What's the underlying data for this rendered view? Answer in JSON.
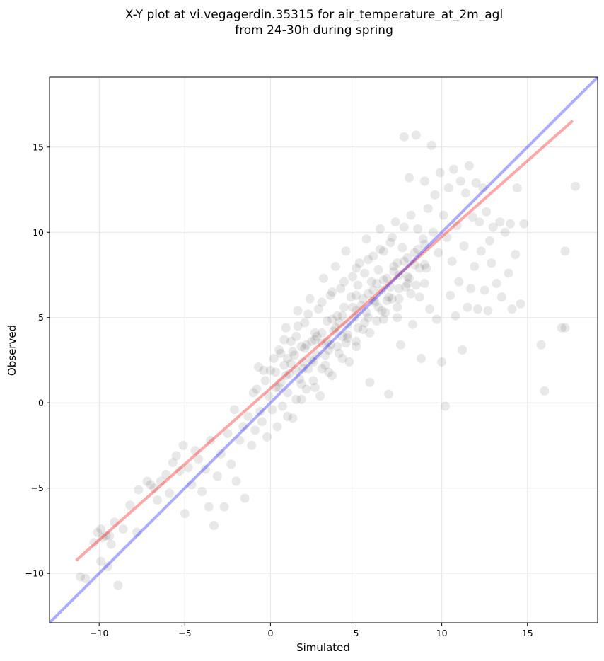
{
  "chart_data": {
    "type": "scatter",
    "title_lines": [
      "X-Y plot at vi.vegagerdin.35315 for air_temperature_at_2m_agl",
      "from 24-30h during spring"
    ],
    "xlabel": "Simulated",
    "ylabel": "Observed",
    "xlim": [
      -12.9,
      19.1
    ],
    "ylim": [
      -12.9,
      19.1
    ],
    "xticks": [
      -10,
      -5,
      0,
      5,
      10,
      15
    ],
    "yticks": [
      -10,
      -5,
      0,
      5,
      10,
      15
    ],
    "xtick_labels": [
      "−10",
      "−5",
      "0",
      "5",
      "10",
      "15"
    ],
    "ytick_labels": [
      "−10",
      "−5",
      "0",
      "5",
      "10",
      "15"
    ],
    "grid": true,
    "series": [
      {
        "kind": "points",
        "color": "#000000",
        "opacity": 0.09,
        "points": [
          [
            -11.1,
            -10.2
          ],
          [
            -10.8,
            -10.3
          ],
          [
            -10.3,
            -8.2
          ],
          [
            -10.1,
            -7.6
          ],
          [
            -9.9,
            -7.4
          ],
          [
            -9.8,
            -7.9
          ],
          [
            -9.6,
            -7.8
          ],
          [
            -9.4,
            -7.8
          ],
          [
            -9.3,
            -8.3
          ],
          [
            -9.9,
            -9.3
          ],
          [
            -9.5,
            -9.6
          ],
          [
            -9.1,
            -7.0
          ],
          [
            -8.9,
            -10.7
          ],
          [
            -8.6,
            -7.4
          ],
          [
            -8.2,
            -6.0
          ],
          [
            -7.8,
            -7.6
          ],
          [
            -7.7,
            -5.1
          ],
          [
            -7.2,
            -4.6
          ],
          [
            -7.0,
            -4.8
          ],
          [
            -6.8,
            -5.0
          ],
          [
            -6.6,
            -5.7
          ],
          [
            -6.4,
            -4.6
          ],
          [
            -6.1,
            -4.2
          ],
          [
            -5.9,
            -5.3
          ],
          [
            -5.7,
            -3.5
          ],
          [
            -5.5,
            -3.1
          ],
          [
            -5.3,
            -4.0
          ],
          [
            -5.1,
            -2.5
          ],
          [
            -5.0,
            -6.5
          ],
          [
            -4.8,
            -3.8
          ],
          [
            -4.6,
            -4.8
          ],
          [
            -4.4,
            -2.8
          ],
          [
            -4.2,
            -3.3
          ],
          [
            -4.0,
            -5.2
          ],
          [
            -3.8,
            -3.9
          ],
          [
            -3.6,
            -6.1
          ],
          [
            -3.5,
            -2.2
          ],
          [
            -3.3,
            -7.2
          ],
          [
            -3.1,
            -4.3
          ],
          [
            -2.9,
            -3.0
          ],
          [
            -2.7,
            -6.1
          ],
          [
            -2.5,
            -1.8
          ],
          [
            -2.3,
            -3.6
          ],
          [
            -2.1,
            -0.4
          ],
          [
            -2.0,
            -4.6
          ],
          [
            -1.8,
            -2.2
          ],
          [
            -1.6,
            -1.4
          ],
          [
            -1.5,
            -5.6
          ],
          [
            -1.3,
            -0.8
          ],
          [
            -1.1,
            -2.5
          ],
          [
            -1.0,
            0.6
          ],
          [
            -0.9,
            -1.6
          ],
          [
            -0.7,
            2.1
          ],
          [
            -0.6,
            -0.5
          ],
          [
            -0.5,
            -1.1
          ],
          [
            -0.3,
            1.3
          ],
          [
            -0.2,
            -2.0
          ],
          [
            -0.1,
            0.4
          ],
          [
            0.0,
            1.9
          ],
          [
            0.1,
            -0.4
          ],
          [
            0.2,
            2.6
          ],
          [
            0.3,
            0.9
          ],
          [
            0.4,
            -1.4
          ],
          [
            0.5,
            3.1
          ],
          [
            0.6,
            1.2
          ],
          [
            0.7,
            -0.2
          ],
          [
            0.8,
            2.2
          ],
          [
            0.9,
            4.4
          ],
          [
            1.0,
            0.6
          ],
          [
            1.1,
            1.7
          ],
          [
            1.2,
            3.6
          ],
          [
            1.3,
            -0.9
          ],
          [
            1.4,
            2.8
          ],
          [
            1.5,
            0.2
          ],
          [
            1.6,
            5.4
          ],
          [
            1.7,
            1.4
          ],
          [
            1.8,
            3.3
          ],
          [
            1.9,
            2.4
          ],
          [
            2.0,
            4.7
          ],
          [
            2.1,
            0.8
          ],
          [
            2.2,
            2.0
          ],
          [
            2.3,
            6.1
          ],
          [
            2.4,
            3.6
          ],
          [
            2.5,
            1.3
          ],
          [
            2.6,
            4.1
          ],
          [
            2.7,
            2.8
          ],
          [
            2.8,
            5.5
          ],
          [
            2.9,
            0.4
          ],
          [
            3.0,
            3.5
          ],
          [
            3.1,
            7.3
          ],
          [
            3.2,
            2.2
          ],
          [
            3.3,
            4.8
          ],
          [
            3.4,
            3.1
          ],
          [
            3.5,
            6.3
          ],
          [
            3.6,
            1.6
          ],
          [
            3.7,
            4.2
          ],
          [
            3.8,
            8.0
          ],
          [
            3.9,
            5.1
          ],
          [
            4.0,
            2.9
          ],
          [
            4.1,
            6.7
          ],
          [
            4.2,
            3.9
          ],
          [
            4.3,
            5.6
          ],
          [
            4.4,
            8.9
          ],
          [
            4.5,
            4.6
          ],
          [
            4.6,
            2.4
          ],
          [
            4.7,
            6.2
          ],
          [
            4.8,
            7.4
          ],
          [
            4.9,
            5.0
          ],
          [
            5.0,
            3.6
          ],
          [
            5.1,
            6.9
          ],
          [
            5.2,
            8.2
          ],
          [
            5.3,
            5.7
          ],
          [
            5.4,
            4.3
          ],
          [
            5.5,
            7.6
          ],
          [
            5.6,
            9.6
          ],
          [
            5.7,
            6.4
          ],
          [
            5.8,
            1.2
          ],
          [
            5.9,
            7.1
          ],
          [
            6.0,
            8.6
          ],
          [
            6.1,
            5.9
          ],
          [
            6.2,
            4.8
          ],
          [
            6.3,
            7.8
          ],
          [
            6.4,
            10.2
          ],
          [
            6.5,
            6.6
          ],
          [
            6.6,
            8.9
          ],
          [
            6.7,
            5.3
          ],
          [
            6.8,
            7.3
          ],
          [
            6.9,
            0.5
          ],
          [
            7.0,
            9.4
          ],
          [
            7.1,
            6.1
          ],
          [
            7.2,
            8.0
          ],
          [
            7.3,
            10.6
          ],
          [
            7.4,
            5.0
          ],
          [
            7.5,
            7.5
          ],
          [
            7.6,
            3.4
          ],
          [
            7.7,
            9.1
          ],
          [
            7.8,
            15.6
          ],
          [
            7.9,
            6.8
          ],
          [
            8.0,
            8.5
          ],
          [
            8.1,
            13.2
          ],
          [
            8.2,
            11.0
          ],
          [
            8.3,
            4.6
          ],
          [
            8.4,
            8.1
          ],
          [
            8.5,
            15.7
          ],
          [
            8.6,
            10.2
          ],
          [
            8.7,
            6.2
          ],
          [
            8.8,
            2.6
          ],
          [
            8.9,
            9.6
          ],
          [
            9.0,
            13.0
          ],
          [
            9.1,
            7.9
          ],
          [
            9.2,
            11.4
          ],
          [
            9.3,
            5.5
          ],
          [
            9.4,
            15.1
          ],
          [
            9.5,
            10.0
          ],
          [
            9.6,
            12.2
          ],
          [
            9.7,
            4.9
          ],
          [
            9.8,
            8.8
          ],
          [
            9.9,
            13.5
          ],
          [
            10.0,
            2.4
          ],
          [
            10.1,
            11.0
          ],
          [
            10.2,
            -0.2
          ],
          [
            10.3,
            9.7
          ],
          [
            10.4,
            12.6
          ],
          [
            10.5,
            6.3
          ],
          [
            10.6,
            8.3
          ],
          [
            10.7,
            13.7
          ],
          [
            10.8,
            5.1
          ],
          [
            10.9,
            10.4
          ],
          [
            11.0,
            7.1
          ],
          [
            11.1,
            13.0
          ],
          [
            11.2,
            3.1
          ],
          [
            11.3,
            9.2
          ],
          [
            11.4,
            12.3
          ],
          [
            11.5,
            5.6
          ],
          [
            11.6,
            13.9
          ],
          [
            11.7,
            6.7
          ],
          [
            11.8,
            10.9
          ],
          [
            11.9,
            8.0
          ],
          [
            12.0,
            12.9
          ],
          [
            12.1,
            5.5
          ],
          [
            12.2,
            10.6
          ],
          [
            12.3,
            8.9
          ],
          [
            12.4,
            12.6
          ],
          [
            12.5,
            6.6
          ],
          [
            12.6,
            11.2
          ],
          [
            12.7,
            5.4
          ],
          [
            12.8,
            9.5
          ],
          [
            12.9,
            8.2
          ],
          [
            13.0,
            10.3
          ],
          [
            13.2,
            7.0
          ],
          [
            13.4,
            10.6
          ],
          [
            13.5,
            6.2
          ],
          [
            13.7,
            10.0
          ],
          [
            13.9,
            7.6
          ],
          [
            14.0,
            10.5
          ],
          [
            14.1,
            5.5
          ],
          [
            14.3,
            8.7
          ],
          [
            14.4,
            12.6
          ],
          [
            14.6,
            5.8
          ],
          [
            14.8,
            10.5
          ],
          [
            15.8,
            3.4
          ],
          [
            16.0,
            0.7
          ],
          [
            17.0,
            4.4
          ],
          [
            17.2,
            8.9
          ],
          [
            17.2,
            4.4
          ],
          [
            17.8,
            12.7
          ],
          [
            0.3,
            1.8
          ],
          [
            0.6,
            2.9
          ],
          [
            0.9,
            1.6
          ],
          [
            1.2,
            2.3
          ],
          [
            1.5,
            3.9
          ],
          [
            1.8,
            1.1
          ],
          [
            2.1,
            3.4
          ],
          [
            2.4,
            2.5
          ],
          [
            2.7,
            3.9
          ],
          [
            3.0,
            2.0
          ],
          [
            3.3,
            3.6
          ],
          [
            3.6,
            4.9
          ],
          [
            3.9,
            3.3
          ],
          [
            4.2,
            5.1
          ],
          [
            4.5,
            3.8
          ],
          [
            4.8,
            5.6
          ],
          [
            5.1,
            4.4
          ],
          [
            5.4,
            6.1
          ],
          [
            5.7,
            5.0
          ],
          [
            6.0,
            6.6
          ],
          [
            6.3,
            5.6
          ],
          [
            6.6,
            7.2
          ],
          [
            6.9,
            6.2
          ],
          [
            7.2,
            7.7
          ],
          [
            7.5,
            6.7
          ],
          [
            7.8,
            8.3
          ],
          [
            8.1,
            7.3
          ],
          [
            8.4,
            8.8
          ],
          [
            8.7,
            7.9
          ],
          [
            9.0,
            9.3
          ],
          [
            0.5,
            0.9
          ],
          [
            1.0,
            2.6
          ],
          [
            1.5,
            1.9
          ],
          [
            2.0,
            3.2
          ],
          [
            2.5,
            2.4
          ],
          [
            3.0,
            4.1
          ],
          [
            3.5,
            3.4
          ],
          [
            4.0,
            4.7
          ],
          [
            4.5,
            4.0
          ],
          [
            5.0,
            5.4
          ],
          [
            5.5,
            4.7
          ],
          [
            6.0,
            6.0
          ],
          [
            6.5,
            5.4
          ],
          [
            7.0,
            6.8
          ],
          [
            7.5,
            6.1
          ],
          [
            8.0,
            7.4
          ],
          [
            8.5,
            6.9
          ],
          [
            9.0,
            8.1
          ],
          [
            1.3,
            3.0
          ],
          [
            1.9,
            2.0
          ],
          [
            2.6,
            3.7
          ],
          [
            3.2,
            2.8
          ],
          [
            3.8,
            4.4
          ],
          [
            4.4,
            3.5
          ],
          [
            5.0,
            6.3
          ],
          [
            5.6,
            5.3
          ],
          [
            6.2,
            7.0
          ],
          [
            6.8,
            6.0
          ],
          [
            7.4,
            8.2
          ],
          [
            8.0,
            7.0
          ],
          [
            8.6,
            9.0
          ],
          [
            -0.8,
            0.8
          ],
          [
            -0.4,
            1.9
          ],
          [
            0.8,
            3.7
          ],
          [
            1.6,
            4.5
          ],
          [
            2.2,
            5.2
          ],
          [
            3.0,
            5.9
          ],
          [
            3.6,
            6.5
          ],
          [
            4.3,
            7.1
          ],
          [
            5.0,
            7.9
          ],
          [
            5.7,
            8.4
          ],
          [
            6.4,
            9.0
          ],
          [
            7.1,
            9.7
          ],
          [
            7.8,
            10.3
          ],
          [
            1.0,
            -0.8
          ],
          [
            1.8,
            0.2
          ],
          [
            2.6,
            0.9
          ],
          [
            3.4,
            1.8
          ],
          [
            4.2,
            2.6
          ],
          [
            5.0,
            3.3
          ],
          [
            5.8,
            4.1
          ],
          [
            6.6,
            4.9
          ],
          [
            7.4,
            5.6
          ],
          [
            8.2,
            6.4
          ],
          [
            9.0,
            7.0
          ]
        ]
      },
      {
        "kind": "line",
        "name": "",
        "color": "#ff0000",
        "opacity": 0.35,
        "x": [
          -11.3,
          17.6
        ],
        "y": [
          -9.2,
          16.5
        ]
      },
      {
        "kind": "line",
        "name": "",
        "color": "#0000ff",
        "opacity": 0.33,
        "x": [
          -12.9,
          19.1
        ],
        "y": [
          -12.9,
          19.1
        ]
      }
    ]
  }
}
